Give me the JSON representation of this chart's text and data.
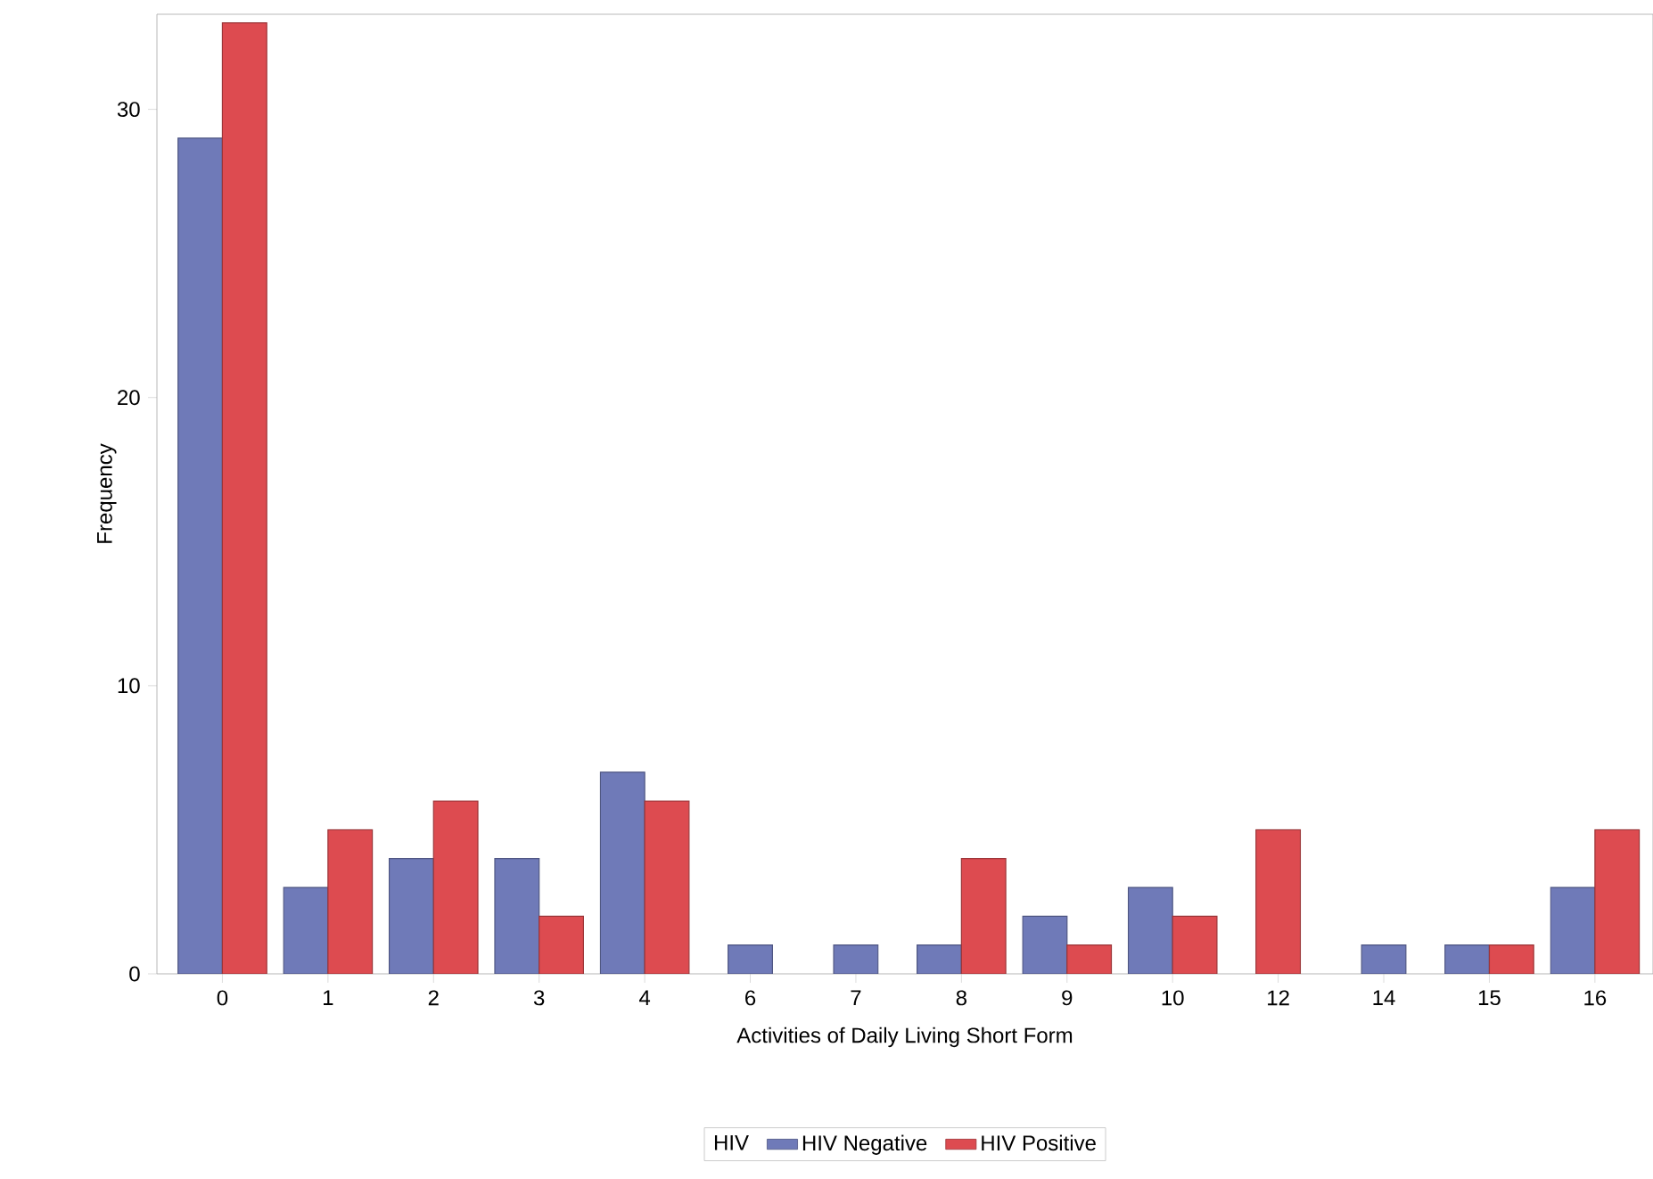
{
  "chart_data": {
    "type": "bar",
    "xlabel": "Activities of Daily Living Short Form",
    "ylabel": "Frequency",
    "legend_title": "HIV",
    "categories": [
      "0",
      "1",
      "2",
      "3",
      "4",
      "6",
      "7",
      "8",
      "9",
      "10",
      "12",
      "14",
      "15",
      "16"
    ],
    "series": [
      {
        "name": "HIV Negative",
        "color": "#6f7ab8",
        "values": [
          29,
          3,
          4,
          4,
          7,
          1,
          1,
          1,
          2,
          3,
          null,
          1,
          1,
          3
        ]
      },
      {
        "name": "HIV Positive",
        "color": "#dd4b50",
        "values": [
          33,
          5,
          6,
          2,
          6,
          null,
          null,
          4,
          1,
          2,
          5,
          null,
          1,
          5
        ]
      }
    ],
    "ylim": [
      0,
      33.3
    ],
    "yticks": [
      0,
      10,
      20,
      30
    ],
    "grid": false,
    "legend": "bottom"
  }
}
